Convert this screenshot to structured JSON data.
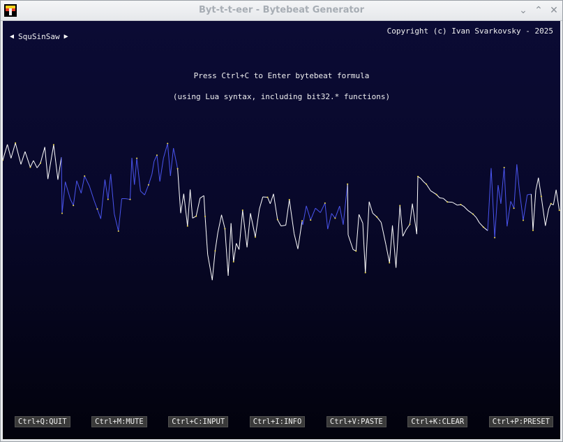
{
  "window": {
    "title": "Byt-t-t-eer - Bytebeat Generator"
  },
  "preset": {
    "name": "SquSinSaw"
  },
  "copyright": "Copyright (c) Ivan Svarkovsky - 2025",
  "prompt": {
    "line1": "Press Ctrl+C to Enter bytebeat formula",
    "line2": "(using Lua syntax, including bit32.* functions)"
  },
  "colors": {
    "background": "#0b0b34",
    "wave_white": "#ffffff",
    "wave_blue": "#4a55f0",
    "dots": "#f5e04a"
  },
  "shortcuts": [
    "Ctrl+Q:QUIT",
    "Ctrl+M:MUTE",
    "Ctrl+C:INPUT",
    "Ctrl+I:INFO",
    "Ctrl+V:PASTE",
    "Ctrl+K:CLEAR",
    "Ctrl+P:PRESET"
  ]
}
